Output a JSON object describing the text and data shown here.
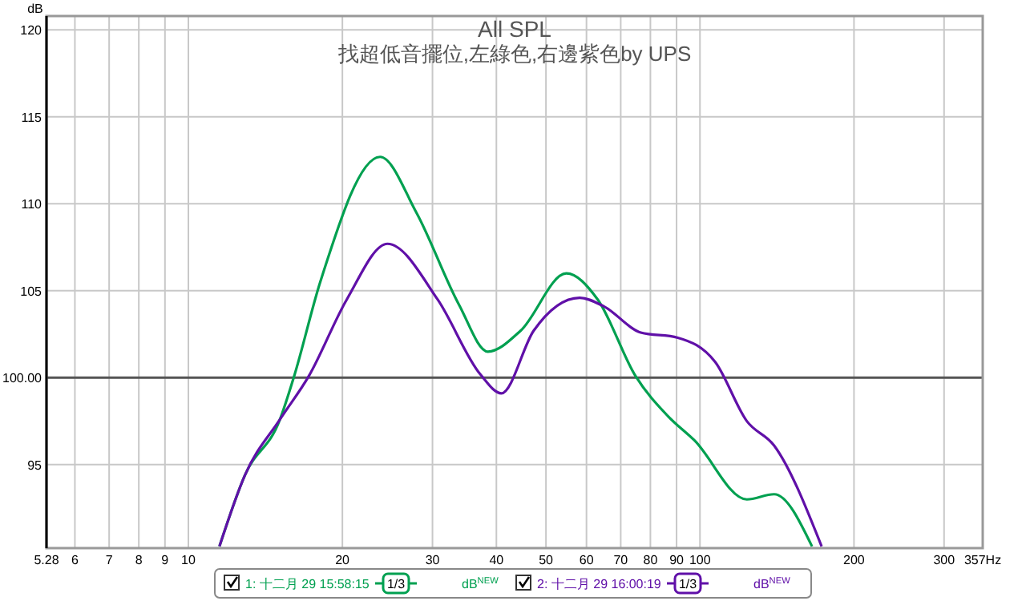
{
  "chart_data": {
    "type": "line",
    "title": "All SPL",
    "subtitle": "找超低音擺位,左綠色,右邊紫色by UPS",
    "ylabel": "dB",
    "xlim": [
      5.28,
      357
    ],
    "ylim": [
      90.2,
      120.8
    ],
    "log": "x",
    "grid": true,
    "legend": "bottom",
    "xticks": [
      {
        "value": 5.28,
        "label": "5.28"
      },
      6,
      7,
      8,
      9,
      10,
      20,
      30,
      40,
      50,
      60,
      70,
      80,
      90,
      100,
      200,
      300,
      {
        "value": 357,
        "label": "357Hz"
      }
    ],
    "yticks": [
      95,
      {
        "value": 100,
        "label": "100.00"
      },
      105,
      110,
      115,
      120
    ],
    "ref_lines": [
      {
        "axis": "y",
        "value": 100,
        "color": "#555555"
      }
    ],
    "annotations": [
      "1/3",
      "dB$^{NEW}$",
      "1/3",
      "dB$^{NEW}$"
    ],
    "series": [
      {
        "name": "1: 十二月 29 15:58:15",
        "color": "#00a050",
        "x": [
          11.5,
          12.9,
          15.1,
          16.1,
          18.1,
          23.7,
          27.9,
          33.8,
          38.5,
          44.6,
          54.8,
          63.1,
          74.8,
          86.5,
          97.5,
          123.5,
          139.6,
          165.6
        ],
        "values": [
          90.3,
          94.4,
          97.6,
          100.1,
          105.5,
          112.7,
          109.5,
          104.2,
          101.5,
          102.7,
          106.0,
          104.5,
          100.1,
          97.8,
          96.4,
          93.0,
          93.3,
          90.3
        ]
      },
      {
        "name": "2: 十二月 29 16:00:19",
        "color": "#6010a8",
        "x": [
          11.5,
          12.9,
          15.1,
          17.2,
          20.4,
          24.5,
          30.7,
          37.2,
          40.9,
          47.3,
          58.2,
          64.9,
          76.6,
          90.5,
          107.1,
          123.5,
          139.6,
          172.9
        ],
        "values": [
          90.3,
          94.4,
          97.6,
          100.1,
          104.5,
          107.7,
          104.5,
          100.2,
          99.1,
          102.7,
          104.6,
          104.1,
          102.6,
          102.3,
          100.9,
          97.5,
          96.1,
          90.3
        ]
      }
    ]
  }
}
